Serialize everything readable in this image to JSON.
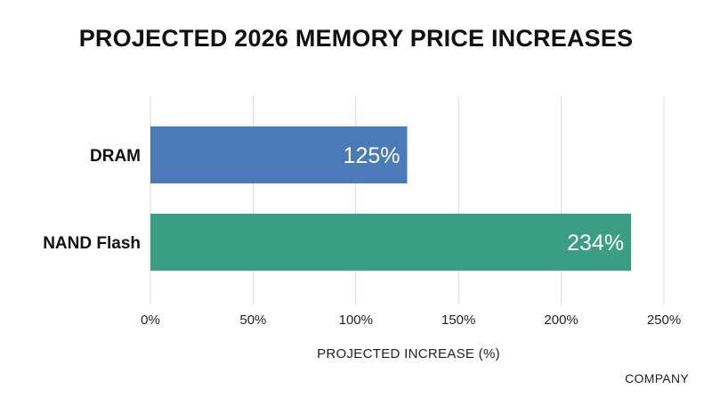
{
  "chart_data": {
    "type": "bar",
    "orientation": "horizontal",
    "title": "PROJECTED 2026 MEMORY PRICE INCREASES",
    "categories": [
      "DRAM",
      "NAND Flash"
    ],
    "values": [
      125,
      234
    ],
    "data_labels": [
      "125%",
      "234%"
    ],
    "colors": [
      "#4a7ab8",
      "#3a9e85"
    ],
    "xlabel": "PROJECTED INCREASE (%)",
    "ylabel": "",
    "xlim": [
      0,
      250
    ],
    "xticks": [
      0,
      50,
      100,
      150,
      200,
      250
    ],
    "xtick_labels": [
      "0%",
      "50%",
      "100%",
      "150%",
      "200%",
      "250%"
    ],
    "grid": "vertical",
    "legend": "none"
  },
  "watermark": "COMPANY"
}
